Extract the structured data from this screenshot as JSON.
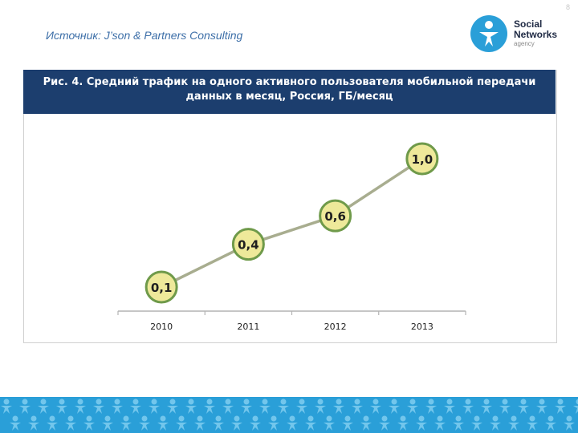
{
  "page_number": "8",
  "source": "Источник: J’son & Partners Consulting",
  "logo": {
    "line1": "Social",
    "line2": "Networks",
    "line3": "agency"
  },
  "chart_data": {
    "type": "line",
    "title": "Рис. 4. Средний трафик на одного активного пользователя мобильной передачи данных в месяц, Россия, ГБ/месяц",
    "categories": [
      "2010",
      "2011",
      "2012",
      "2013"
    ],
    "values": [
      0.1,
      0.4,
      0.6,
      1.0
    ],
    "data_labels": [
      "0,1",
      "0,4",
      "0,6",
      "1,0"
    ],
    "grid": false,
    "legend": "none",
    "colors": {
      "line": "#a8ad8f",
      "marker_fill": "#eee99a",
      "marker_stroke": "#6f9a4a",
      "axis": "#b3b3b3"
    }
  }
}
